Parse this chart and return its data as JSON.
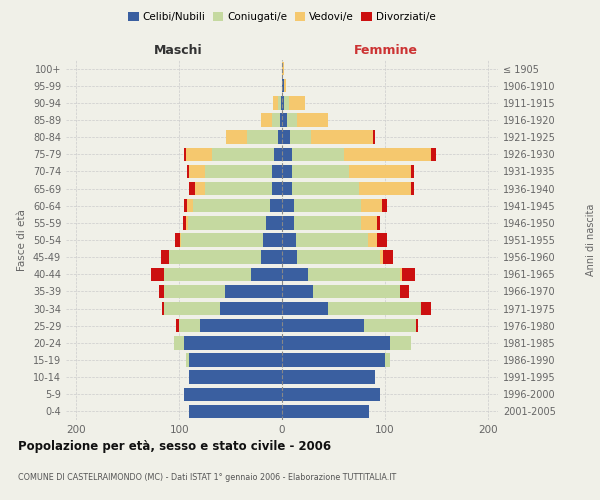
{
  "age_groups": [
    "0-4",
    "5-9",
    "10-14",
    "15-19",
    "20-24",
    "25-29",
    "30-34",
    "35-39",
    "40-44",
    "45-49",
    "50-54",
    "55-59",
    "60-64",
    "65-69",
    "70-74",
    "75-79",
    "80-84",
    "85-89",
    "90-94",
    "95-99",
    "100+"
  ],
  "birth_years": [
    "2001-2005",
    "1996-2000",
    "1991-1995",
    "1986-1990",
    "1981-1985",
    "1976-1980",
    "1971-1975",
    "1966-1970",
    "1961-1965",
    "1956-1960",
    "1951-1955",
    "1946-1950",
    "1941-1945",
    "1936-1940",
    "1931-1935",
    "1926-1930",
    "1921-1925",
    "1916-1920",
    "1911-1915",
    "1906-1910",
    "≤ 1905"
  ],
  "colors": {
    "celibi": "#3a5fa0",
    "coniugati": "#c5d9a0",
    "vedovi": "#f5c86e",
    "divorziati": "#cc1010"
  },
  "males": {
    "celibi": [
      90,
      95,
      90,
      90,
      95,
      80,
      60,
      55,
      30,
      20,
      18,
      16,
      12,
      10,
      10,
      8,
      4,
      2,
      1,
      0,
      0
    ],
    "coniugati": [
      0,
      0,
      0,
      3,
      10,
      20,
      55,
      60,
      85,
      90,
      80,
      75,
      75,
      65,
      65,
      60,
      30,
      8,
      3,
      0,
      0
    ],
    "vedovi": [
      0,
      0,
      0,
      0,
      0,
      0,
      0,
      0,
      0,
      0,
      1,
      2,
      5,
      10,
      15,
      25,
      20,
      10,
      5,
      0,
      0
    ],
    "divorziati": [
      0,
      0,
      0,
      0,
      0,
      3,
      2,
      5,
      12,
      8,
      5,
      3,
      3,
      5,
      2,
      2,
      0,
      0,
      0,
      0,
      0
    ]
  },
  "females": {
    "celibi": [
      85,
      95,
      90,
      100,
      105,
      80,
      45,
      30,
      25,
      15,
      14,
      12,
      12,
      10,
      10,
      10,
      8,
      5,
      2,
      2,
      0
    ],
    "coniugati": [
      0,
      0,
      0,
      5,
      20,
      50,
      90,
      85,
      90,
      80,
      70,
      65,
      65,
      65,
      55,
      50,
      20,
      10,
      5,
      0,
      0
    ],
    "vedovi": [
      0,
      0,
      0,
      0,
      0,
      0,
      0,
      0,
      2,
      3,
      8,
      15,
      20,
      50,
      60,
      85,
      60,
      30,
      15,
      2,
      2
    ],
    "divorziati": [
      0,
      0,
      0,
      0,
      0,
      2,
      10,
      8,
      12,
      10,
      10,
      3,
      5,
      3,
      3,
      5,
      2,
      0,
      0,
      0,
      0
    ]
  },
  "xlim": 210,
  "title": "Popolazione per età, sesso e stato civile - 2006",
  "subtitle": "COMUNE DI CASTELRAIMONDO (MC) - Dati ISTAT 1° gennaio 2006 - Elaborazione TUTTITALIA.IT",
  "ylabel_left": "Fasce di età",
  "ylabel_right": "Anni di nascita",
  "xlabel_left": "Maschi",
  "xlabel_right": "Femmine",
  "background_color": "#f0f0e8",
  "legend_labels": [
    "Celibi/Nubili",
    "Coniugati/e",
    "Vedovi/e",
    "Divorziati/e"
  ]
}
